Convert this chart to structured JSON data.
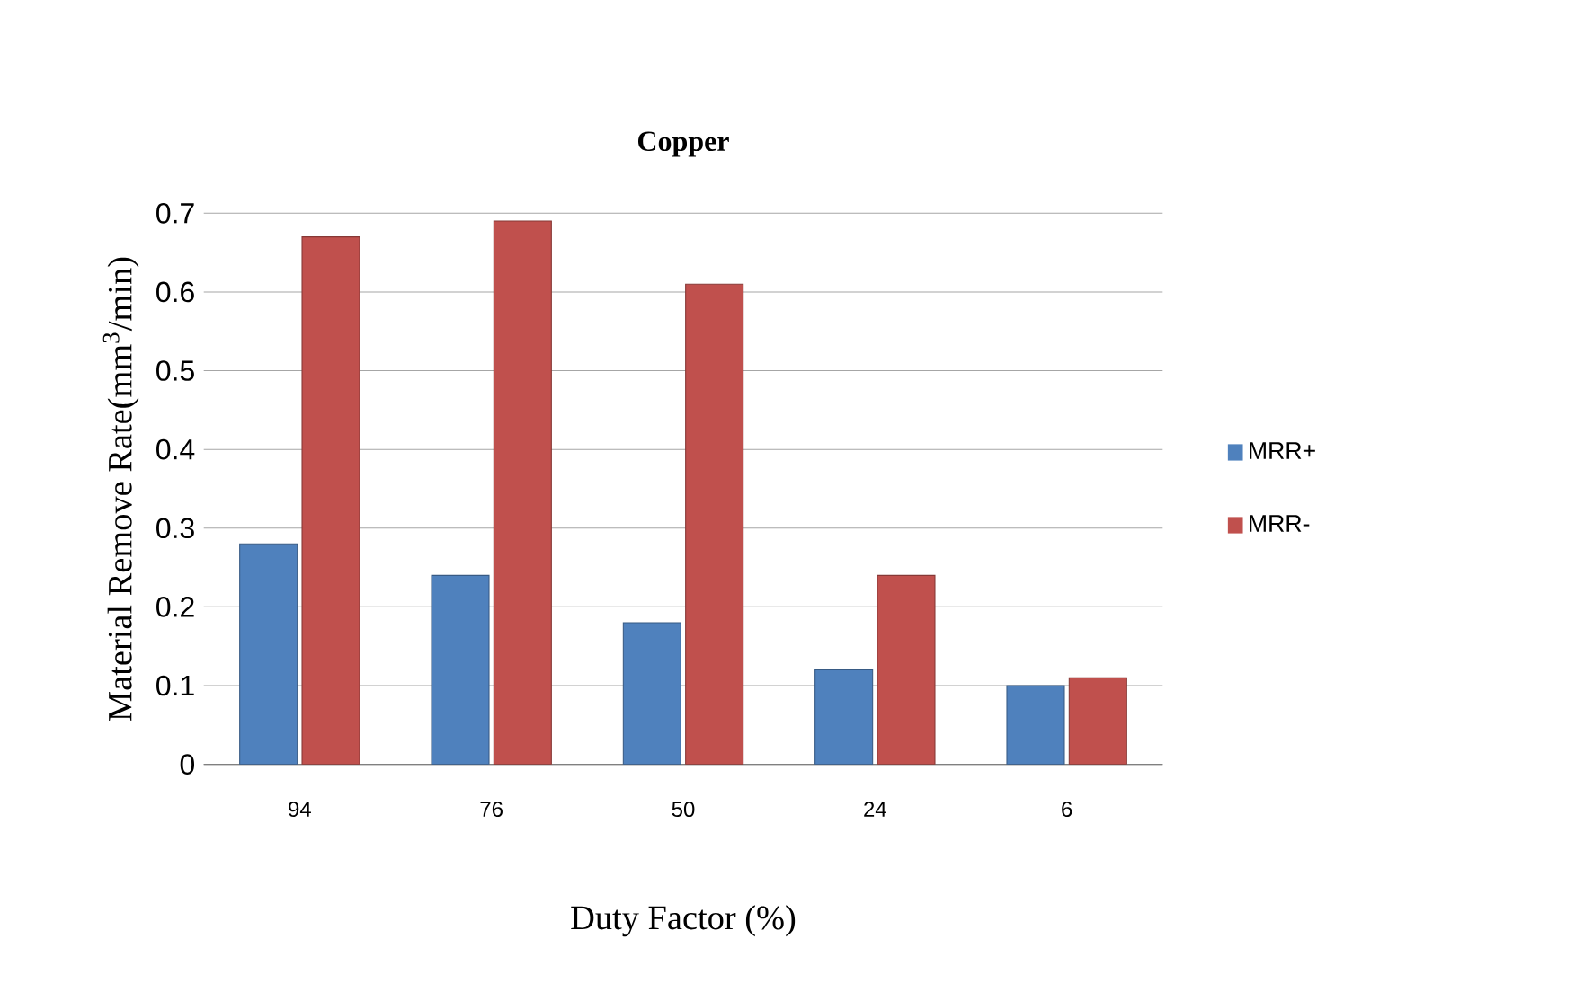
{
  "chart_data": {
    "type": "bar",
    "title": "Copper",
    "xlabel": "Duty Factor (%)",
    "ylabel": "Material Remove Rate(mm$^{3}$/min)",
    "categories": [
      "94",
      "76",
      "50",
      "24",
      "6"
    ],
    "series": [
      {
        "name": "MRR+",
        "color": "#4f81bd",
        "values": [
          0.28,
          0.24,
          0.18,
          0.12,
          0.1
        ]
      },
      {
        "name": "MRR-",
        "color": "#c0504d",
        "values": [
          0.67,
          0.69,
          0.61,
          0.24,
          0.11
        ]
      }
    ],
    "ylim": [
      0,
      0.7
    ],
    "yticks": [
      0,
      0.1,
      0.2,
      0.3,
      0.4,
      0.5,
      0.6,
      0.7
    ],
    "grid": "y",
    "legend": "right"
  }
}
